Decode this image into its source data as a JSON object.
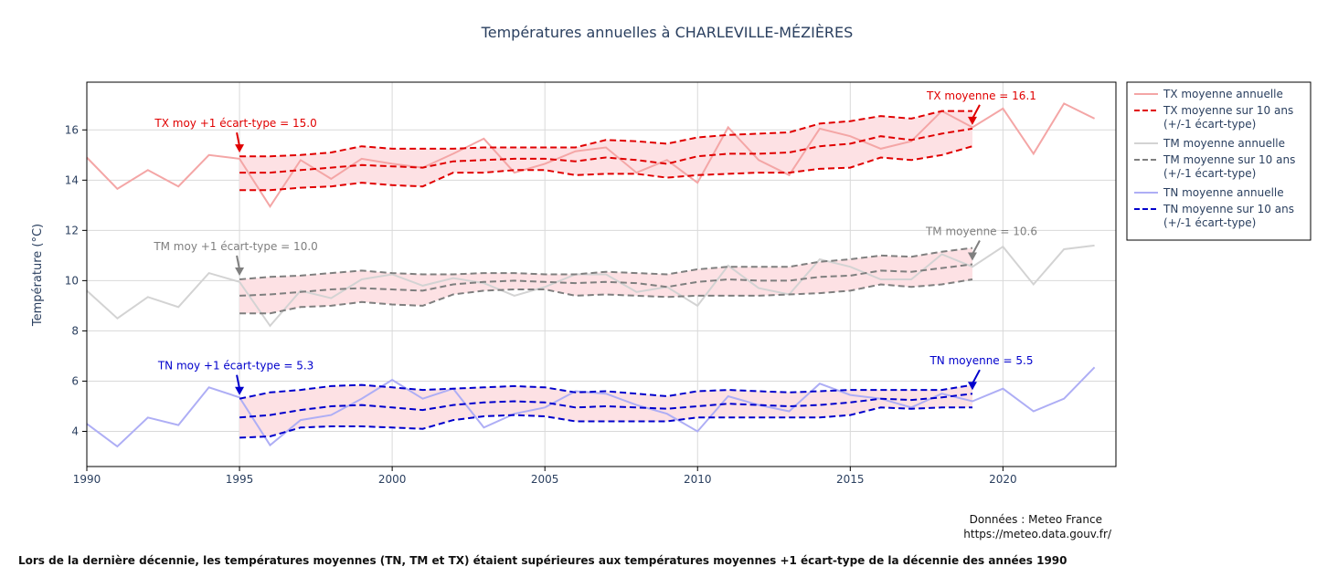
{
  "chart_data": {
    "type": "line",
    "title": "Températures annuelles à CHARLEVILLE-MÉZIÈRES",
    "ylabel": "Température (°C)",
    "xlabel": "",
    "xlim": [
      1990,
      2023.7
    ],
    "ylim": [
      2.6,
      17.9
    ],
    "x_ticks": [
      1990,
      1995,
      2000,
      2005,
      2010,
      2015,
      2020
    ],
    "y_ticks": [
      4,
      6,
      8,
      10,
      12,
      14,
      16
    ],
    "grid": true,
    "legend_position": "right",
    "x_annual": [
      1990,
      1991,
      1992,
      1993,
      1994,
      1995,
      1996,
      1997,
      1998,
      1999,
      2000,
      2001,
      2002,
      2003,
      2004,
      2005,
      2006,
      2007,
      2008,
      2009,
      2010,
      2011,
      2012,
      2013,
      2014,
      2015,
      2016,
      2017,
      2018,
      2019,
      2020,
      2021,
      2022,
      2023
    ],
    "x_rolling": [
      1995,
      1996,
      1997,
      1998,
      1999,
      2000,
      2001,
      2002,
      2003,
      2004,
      2005,
      2006,
      2007,
      2008,
      2009,
      2010,
      2011,
      2012,
      2013,
      2014,
      2015,
      2016,
      2017,
      2018,
      2019
    ],
    "series": [
      {
        "name": "TX moyenne annuelle",
        "color": "#f4a6a6",
        "style": "solid",
        "values": [
          14.9,
          13.65,
          14.4,
          13.75,
          15.0,
          14.85,
          12.95,
          14.8,
          14.05,
          14.85,
          14.65,
          14.5,
          15.05,
          15.65,
          14.3,
          14.65,
          15.15,
          15.3,
          14.3,
          14.8,
          13.9,
          16.1,
          14.8,
          14.2,
          16.05,
          15.75,
          15.25,
          15.55,
          16.75,
          16.1,
          16.85,
          15.05,
          17.05,
          16.45
        ]
      },
      {
        "name": "TX moyenne sur 10 ans\n(+/-1 écart-type)",
        "color": "#e00000",
        "style": "dash",
        "band_color": "#fde1e4",
        "mean": [
          14.3,
          14.3,
          14.4,
          14.5,
          14.6,
          14.55,
          14.5,
          14.75,
          14.8,
          14.85,
          14.85,
          14.75,
          14.9,
          14.8,
          14.65,
          14.95,
          15.05,
          15.05,
          15.1,
          15.35,
          15.45,
          15.75,
          15.6,
          15.85,
          16.05
        ],
        "upper": [
          14.95,
          14.95,
          15.0,
          15.1,
          15.35,
          15.25,
          15.25,
          15.25,
          15.3,
          15.3,
          15.3,
          15.3,
          15.6,
          15.55,
          15.45,
          15.7,
          15.8,
          15.85,
          15.9,
          16.25,
          16.35,
          16.55,
          16.45,
          16.75,
          16.75
        ],
        "lower": [
          13.6,
          13.6,
          13.7,
          13.75,
          13.9,
          13.8,
          13.75,
          14.3,
          14.3,
          14.4,
          14.4,
          14.2,
          14.25,
          14.25,
          14.1,
          14.2,
          14.25,
          14.3,
          14.3,
          14.45,
          14.5,
          14.9,
          14.8,
          15.0,
          15.35
        ]
      },
      {
        "name": "TM moyenne annuelle",
        "color": "#d3d3d3",
        "style": "solid",
        "values": [
          9.6,
          8.5,
          9.35,
          8.95,
          10.3,
          9.95,
          8.2,
          9.6,
          9.3,
          10.05,
          10.25,
          9.8,
          10.1,
          9.9,
          9.4,
          9.75,
          10.25,
          10.25,
          9.55,
          9.75,
          9.0,
          10.6,
          9.7,
          9.45,
          10.85,
          10.55,
          10.05,
          10.05,
          11.05,
          10.55,
          11.35,
          9.85,
          11.25,
          11.4
        ]
      },
      {
        "name": "TM moyenne sur 10 ans\n(+/-1 écart-type)",
        "color": "#7f7f7f",
        "style": "dash",
        "band_color": "#fde1e4",
        "mean": [
          9.4,
          9.45,
          9.55,
          9.65,
          9.7,
          9.65,
          9.6,
          9.85,
          9.95,
          10.0,
          9.95,
          9.9,
          9.95,
          9.9,
          9.75,
          9.95,
          10.05,
          10.0,
          10.0,
          10.15,
          10.2,
          10.4,
          10.35,
          10.5,
          10.65
        ],
        "upper": [
          10.05,
          10.15,
          10.2,
          10.3,
          10.4,
          10.3,
          10.25,
          10.25,
          10.3,
          10.3,
          10.25,
          10.25,
          10.35,
          10.3,
          10.25,
          10.45,
          10.55,
          10.55,
          10.55,
          10.75,
          10.85,
          11.0,
          10.95,
          11.15,
          11.3
        ],
        "lower": [
          8.7,
          8.7,
          8.95,
          9.0,
          9.15,
          9.05,
          9.0,
          9.45,
          9.6,
          9.65,
          9.65,
          9.4,
          9.45,
          9.4,
          9.35,
          9.4,
          9.4,
          9.4,
          9.45,
          9.5,
          9.6,
          9.85,
          9.75,
          9.85,
          10.05
        ]
      },
      {
        "name": "TN moyenne annuelle",
        "color": "#aeaef5",
        "style": "solid",
        "values": [
          4.3,
          3.4,
          4.55,
          4.25,
          5.75,
          5.35,
          3.45,
          4.45,
          4.65,
          5.3,
          6.05,
          5.3,
          5.7,
          4.15,
          4.7,
          4.95,
          5.6,
          5.5,
          5.05,
          4.7,
          4.0,
          5.4,
          5.05,
          4.8,
          5.9,
          5.45,
          5.3,
          4.95,
          5.5,
          5.2,
          5.7,
          4.8,
          5.3,
          6.55
        ]
      },
      {
        "name": "TN moyenne sur 10 ans\n(+/-1 écart-type)",
        "color": "#0000cc",
        "style": "dash",
        "band_color": "#fde1e4",
        "mean": [
          4.55,
          4.65,
          4.85,
          5.0,
          5.05,
          4.95,
          4.85,
          5.05,
          5.15,
          5.2,
          5.15,
          4.95,
          5.0,
          4.95,
          4.9,
          5.0,
          5.1,
          5.05,
          5.0,
          5.05,
          5.15,
          5.3,
          5.25,
          5.35,
          5.5
        ],
        "upper": [
          5.3,
          5.55,
          5.65,
          5.8,
          5.85,
          5.75,
          5.65,
          5.7,
          5.75,
          5.8,
          5.75,
          5.55,
          5.6,
          5.5,
          5.4,
          5.6,
          5.65,
          5.6,
          5.55,
          5.6,
          5.65,
          5.65,
          5.65,
          5.65,
          5.85
        ],
        "lower": [
          3.75,
          3.8,
          4.15,
          4.2,
          4.2,
          4.15,
          4.1,
          4.45,
          4.6,
          4.65,
          4.6,
          4.4,
          4.4,
          4.4,
          4.4,
          4.55,
          4.55,
          4.55,
          4.55,
          4.55,
          4.65,
          4.95,
          4.9,
          4.95,
          4.95
        ]
      }
    ],
    "annotations": [
      {
        "text": "TX moy +1 écart-type = 15.0",
        "x": 1995,
        "y": 14.95,
        "color": "#e00000",
        "arrow": "down",
        "side": "left"
      },
      {
        "text": "TX moyenne = 16.1",
        "x": 2019,
        "y": 16.05,
        "color": "#e00000",
        "arrow": "down",
        "side": "right"
      },
      {
        "text": "TM moy +1 écart-type = 10.0",
        "x": 1995,
        "y": 10.05,
        "color": "#7f7f7f",
        "arrow": "down",
        "side": "left"
      },
      {
        "text": "TM moyenne = 10.6",
        "x": 2019,
        "y": 10.65,
        "color": "#7f7f7f",
        "arrow": "down",
        "side": "right"
      },
      {
        "text": "TN moy +1 écart-type = 5.3",
        "x": 1995,
        "y": 5.3,
        "color": "#0000cc",
        "arrow": "down",
        "side": "left"
      },
      {
        "text": "TN moyenne = 5.5",
        "x": 2019,
        "y": 5.5,
        "color": "#0000cc",
        "arrow": "down",
        "side": "right"
      }
    ]
  },
  "source": {
    "line1": "Données : Meteo France",
    "line2": "https://meteo.data.gouv.fr/"
  },
  "caption": "Lors de la dernière décennie, les températures moyennes (TN, TM et TX) étaient supérieures aux températures moyennes +1 écart-type de la décennie des années 1990"
}
